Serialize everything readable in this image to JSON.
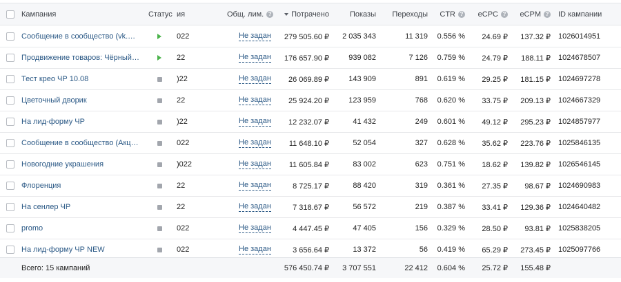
{
  "header": {
    "campaign": "Кампания",
    "status": "Статус",
    "date_fragment": "ия",
    "limit": "Общ. лим.",
    "spent": "Потрачено",
    "impressions": "Показы",
    "clicks": "Переходы",
    "ctr": "CTR",
    "ecpc": "eCPC",
    "ecpm": "eCPM",
    "id": "ID кампании"
  },
  "rows": [
    {
      "name": "Сообщение в сообщество (vk.me)",
      "status": "play",
      "date": "022",
      "limit": "Не задан",
      "spent": "279 505.60 ₽",
      "impressions": "2 035 343",
      "clicks": "11 319",
      "ctr": "0.556 %",
      "ecpc": "24.69 ₽",
      "ecpm": "137.32 ₽",
      "id": "1026014951"
    },
    {
      "name": "Продвижение товаров: Чёрный Р...",
      "status": "play",
      "date": "22",
      "limit": "Не задан",
      "spent": "176 657.90 ₽",
      "impressions": "939 082",
      "clicks": "7 126",
      "ctr": "0.759 %",
      "ecpc": "24.79 ₽",
      "ecpm": "188.11 ₽",
      "id": "1024678507"
    },
    {
      "name": "Тест крео ЧР 10.08",
      "status": "stop",
      "date": ")22",
      "limit": "Не задан",
      "spent": "26 069.89 ₽",
      "impressions": "143 909",
      "clicks": "891",
      "ctr": "0.619 %",
      "ecpc": "29.25 ₽",
      "ecpm": "181.15 ₽",
      "id": "1024697278"
    },
    {
      "name": "Цветочный дворик",
      "status": "stop",
      "date": "22",
      "limit": "Не задан",
      "spent": "25 924.20 ₽",
      "impressions": "123 959",
      "clicks": "768",
      "ctr": "0.620 %",
      "ecpc": "33.75 ₽",
      "ecpm": "209.13 ₽",
      "id": "1024667329"
    },
    {
      "name": "На лид-форму ЧР",
      "status": "stop",
      "date": ")22",
      "limit": "Не задан",
      "spent": "12 232.07 ₽",
      "impressions": "41 432",
      "clicks": "249",
      "ctr": "0.601 %",
      "ecpc": "49.12 ₽",
      "ecpm": "295.23 ₽",
      "id": "1024857977"
    },
    {
      "name": "Сообщение в сообщество (Акция ...",
      "status": "stop",
      "date": "022",
      "limit": "Не задан",
      "spent": "11 648.10 ₽",
      "impressions": "52 054",
      "clicks": "327",
      "ctr": "0.628 %",
      "ecpc": "35.62 ₽",
      "ecpm": "223.76 ₽",
      "id": "1025846135"
    },
    {
      "name": "Новогодние украшения",
      "status": "stop",
      "date": ")022",
      "limit": "Не задан",
      "spent": "11 605.84 ₽",
      "impressions": "83 002",
      "clicks": "623",
      "ctr": "0.751 %",
      "ecpc": "18.62 ₽",
      "ecpm": "139.82 ₽",
      "id": "1026546145"
    },
    {
      "name": "Флоренция",
      "status": "stop",
      "date": "22",
      "limit": "Не задан",
      "spent": "8 725.17 ₽",
      "impressions": "88 420",
      "clicks": "319",
      "ctr": "0.361 %",
      "ecpc": "27.35 ₽",
      "ecpm": "98.67 ₽",
      "id": "1024690983"
    },
    {
      "name": "На сенлер ЧР",
      "status": "stop",
      "date": "22",
      "limit": "Не задан",
      "spent": "7 318.67 ₽",
      "impressions": "56 572",
      "clicks": "219",
      "ctr": "0.387 %",
      "ecpc": "33.41 ₽",
      "ecpm": "129.36 ₽",
      "id": "1024640482"
    },
    {
      "name": "promo",
      "status": "stop",
      "date": "022",
      "limit": "Не задан",
      "spent": "4 447.45 ₽",
      "impressions": "47 405",
      "clicks": "156",
      "ctr": "0.329 %",
      "ecpc": "28.50 ₽",
      "ecpm": "93.81 ₽",
      "id": "1025838205"
    },
    {
      "name": "На лид-форму ЧР NEW",
      "status": "stop",
      "date": "022",
      "limit": "Не задан",
      "spent": "3 656.64 ₽",
      "impressions": "13 372",
      "clicks": "56",
      "ctr": "0.419 %",
      "ecpc": "65.29 ₽",
      "ecpm": "273.45 ₽",
      "id": "1025097766"
    }
  ],
  "total": {
    "label": "Всего: 15 кампаний",
    "spent": "576 450.74 ₽",
    "impressions": "3 707 551",
    "clicks": "22 412",
    "ctr": "0.604 %",
    "ecpc": "25.72 ₽",
    "ecpm": "155.48 ₽"
  },
  "colors": {
    "link": "#2a5885",
    "play": "#4bb34b",
    "stop": "#a2a6ad",
    "header_bg": "#f6f7f9"
  }
}
